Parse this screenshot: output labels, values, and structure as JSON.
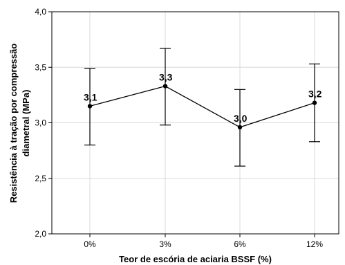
{
  "chart_data": {
    "type": "line",
    "categories": [
      "0%",
      "3%",
      "6%",
      "12%"
    ],
    "series": [
      {
        "values": [
          3.15,
          3.33,
          2.96,
          3.18
        ],
        "error_low": [
          2.8,
          2.98,
          2.61,
          2.83
        ],
        "error_high": [
          3.49,
          3.67,
          3.3,
          3.53
        ],
        "data_labels": [
          "3,1",
          "3,3",
          "3,0",
          "3,2"
        ]
      }
    ],
    "ylim": [
      2.0,
      4.0
    ],
    "yticks": [
      2.0,
      2.5,
      3.0,
      3.5,
      4.0
    ],
    "ytick_labels": [
      "2,0",
      "2,5",
      "3,0",
      "3,5",
      "4,0"
    ],
    "xlabel": "Teor de escória de aciaria BSSF (%)",
    "ylabel_lines": [
      "Resistência à tração por compressão",
      "diametral (MPa)"
    ],
    "grid": true,
    "colors": {
      "line": "#000000",
      "grid": "#d9d9d9",
      "frame": "#000000"
    }
  }
}
